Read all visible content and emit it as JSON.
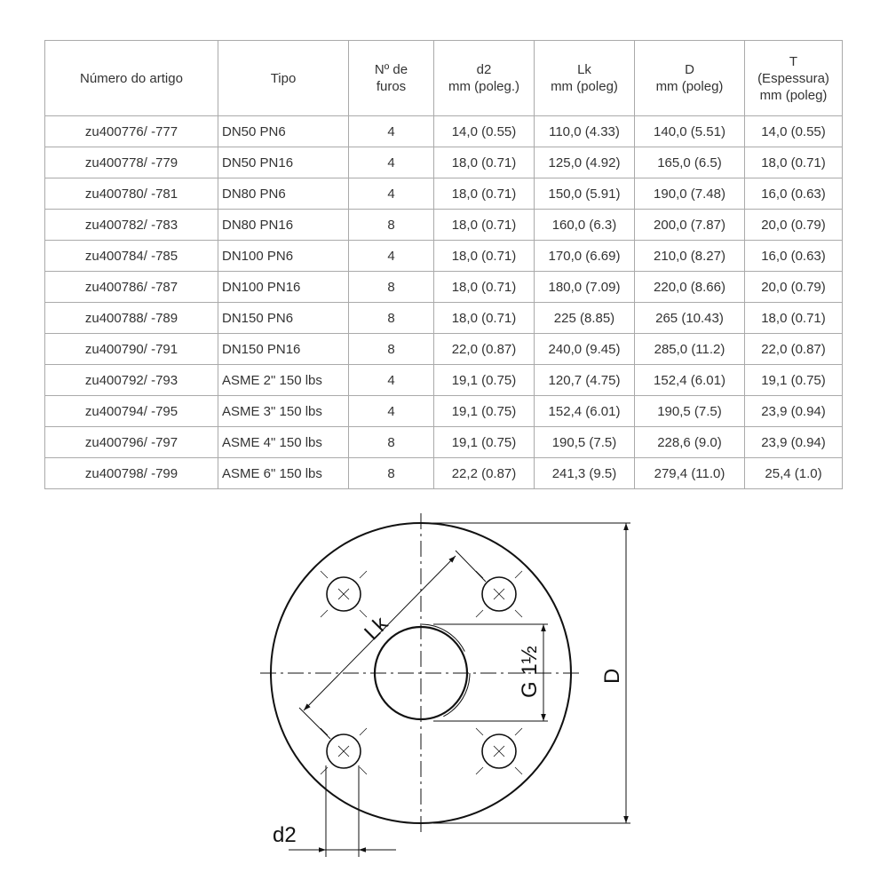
{
  "table": {
    "headers": [
      [
        "Número do artigo"
      ],
      [
        "Tipo"
      ],
      [
        "Nº de",
        "furos"
      ],
      [
        "d2",
        "mm (poleg.)"
      ],
      [
        "Lk",
        "mm (poleg)"
      ],
      [
        "D",
        "mm (poleg)"
      ],
      [
        "T",
        "(Espessura)",
        "mm (poleg)"
      ]
    ],
    "rows": [
      [
        "zu400776/ -777",
        "DN50 PN6",
        "4",
        "14,0 (0.55)",
        "110,0 (4.33)",
        "140,0 (5.51)",
        "14,0 (0.55)"
      ],
      [
        "zu400778/ -779",
        "DN50 PN16",
        "4",
        "18,0 (0.71)",
        "125,0 (4.92)",
        "165,0 (6.5)",
        "18,0 (0.71)"
      ],
      [
        "zu400780/ -781",
        "DN80 PN6",
        "4",
        "18,0 (0.71)",
        "150,0 (5.91)",
        "190,0 (7.48)",
        "16,0 (0.63)"
      ],
      [
        "zu400782/ -783",
        "DN80 PN16",
        "8",
        "18,0 (0.71)",
        "160,0 (6.3)",
        "200,0 (7.87)",
        "20,0 (0.79)"
      ],
      [
        "zu400784/ -785",
        "DN100 PN6",
        "4",
        "18,0 (0.71)",
        "170,0 (6.69)",
        "210,0 (8.27)",
        "16,0 (0.63)"
      ],
      [
        "zu400786/ -787",
        "DN100 PN16",
        "8",
        "18,0 (0.71)",
        "180,0 (7.09)",
        "220,0 (8.66)",
        "20,0 (0.79)"
      ],
      [
        "zu400788/ -789",
        "DN150 PN6",
        "8",
        "18,0 (0.71)",
        "225 (8.85)",
        "265 (10.43)",
        "18,0 (0.71)"
      ],
      [
        "zu400790/ -791",
        "DN150 PN16",
        "8",
        "22,0 (0.87)",
        "240,0 (9.45)",
        "285,0 (11.2)",
        "22,0 (0.87)"
      ],
      [
        "zu400792/ -793",
        "ASME 2\" 150 lbs",
        "4",
        "19,1 (0.75)",
        "120,7 (4.75)",
        "152,4 (6.01)",
        "19,1 (0.75)"
      ],
      [
        "zu400794/ -795",
        "ASME 3\" 150 lbs",
        "4",
        "19,1 (0.75)",
        "152,4 (6.01)",
        "190,5 (7.5)",
        "23,9 (0.94)"
      ],
      [
        "zu400796/ -797",
        "ASME 4\" 150 lbs",
        "8",
        "19,1 (0.75)",
        "190,5 (7.5)",
        "228,6 (9.0)",
        "23,9 (0.94)"
      ],
      [
        "zu400798/ -799",
        "ASME 6\" 150 lbs",
        "8",
        "22,2 (0.87)",
        "241,3 (9.5)",
        "279,4 (11.0)",
        "25,4 (1.0)"
      ]
    ]
  },
  "drawing": {
    "label_lk": "Lk",
    "label_g": "G 1½",
    "label_d": "D",
    "label_d2": "d2"
  }
}
